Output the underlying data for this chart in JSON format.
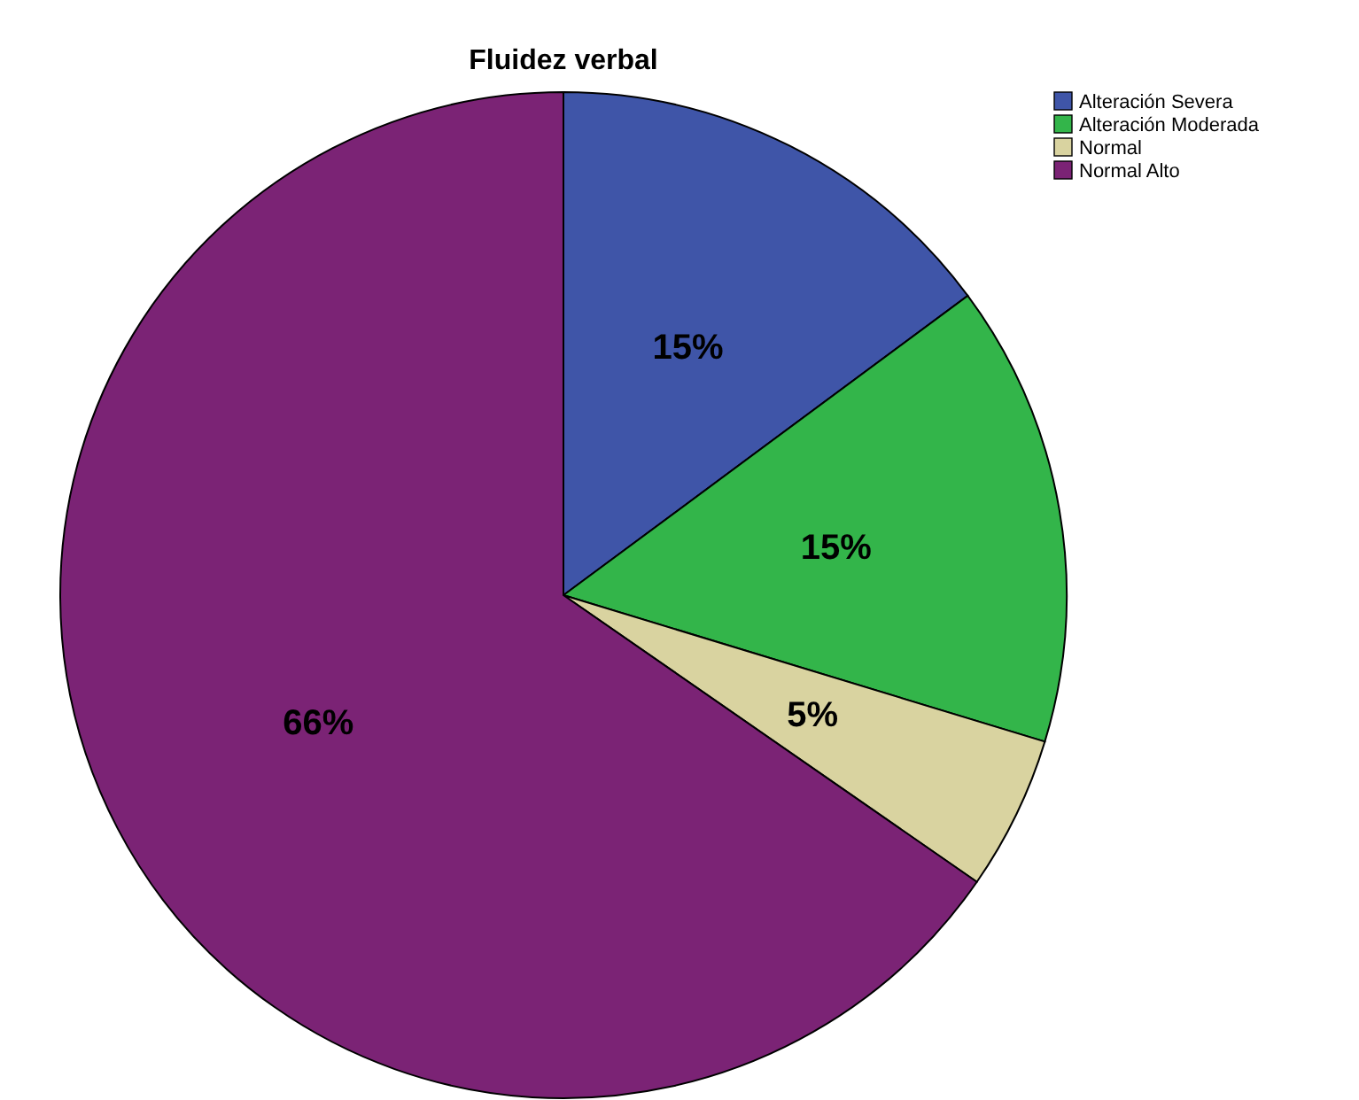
{
  "chart_data": {
    "type": "pie",
    "title": "Fluidez verbal",
    "categories": [
      "Alteración Severa",
      "Alteración Moderada",
      "Normal",
      "Normal Alto"
    ],
    "values": [
      15,
      15,
      5,
      66
    ],
    "colors": [
      "#3f55a8",
      "#33b54a",
      "#d9d3a0",
      "#7b2375"
    ],
    "value_labels": [
      "15%",
      "15%",
      "5%",
      "66%"
    ],
    "legend": "top right"
  }
}
